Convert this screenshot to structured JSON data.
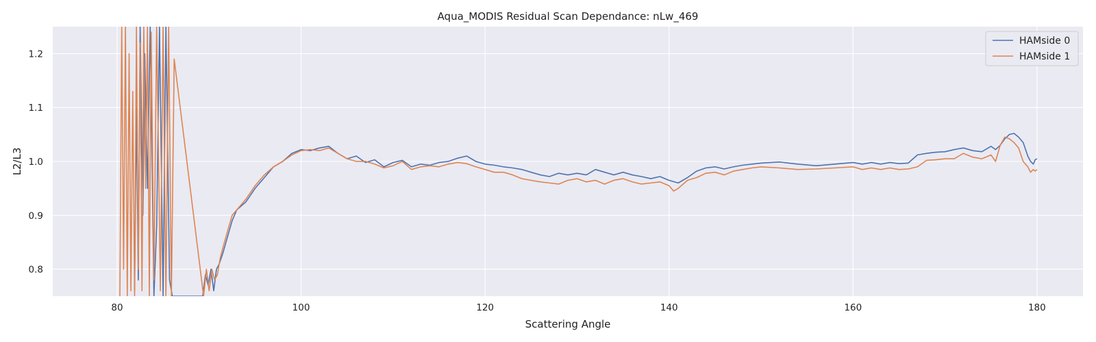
{
  "chart_data": {
    "type": "line",
    "title": "Aqua_MODIS Residual Scan Dependance: nLw_469",
    "xlabel": "Scattering Angle",
    "ylabel": "L2/L3",
    "xlim": [
      73,
      185
    ],
    "ylim": [
      0.75,
      1.25
    ],
    "xticks": [
      80,
      100,
      120,
      140,
      160,
      180
    ],
    "yticks": [
      0.8,
      0.9,
      1.0,
      1.1,
      1.2
    ],
    "xtick_labels": [
      "80",
      "100",
      "120",
      "140",
      "160",
      "180"
    ],
    "ytick_labels": [
      "0.8",
      "0.9",
      "1.0",
      "1.1",
      "1.2"
    ],
    "grid": true,
    "legend_position": "top-right",
    "series": [
      {
        "name": "HAMside 0",
        "color": "#4c72b0",
        "x": [
          81.9,
          82.1,
          82.3,
          82.5,
          82.8,
          83.0,
          83.3,
          83.6,
          84.0,
          84.3,
          84.6,
          85.0,
          85.3,
          85.7,
          86.0,
          89.3,
          89.6,
          89.9,
          90.2,
          90.5,
          90.8,
          91.1,
          91.5,
          92.0,
          92.5,
          93.0,
          94.0,
          95.0,
          96.0,
          97.0,
          98.0,
          99.0,
          100.0,
          101.0,
          102.0,
          103.0,
          104.0,
          105.0,
          106.0,
          107.0,
          108.0,
          109.0,
          110.0,
          111.0,
          112.0,
          113.0,
          114.0,
          115.0,
          116.0,
          117.0,
          118.0,
          119.0,
          120.0,
          121.0,
          122.0,
          123.0,
          124.0,
          125.0,
          126.0,
          127.0,
          128.0,
          129.0,
          130.0,
          131.0,
          132.0,
          133.0,
          134.0,
          135.0,
          136.0,
          137.0,
          138.0,
          139.0,
          140.0,
          141.0,
          142.0,
          143.0,
          144.0,
          145.0,
          146.0,
          147.0,
          148.0,
          149.0,
          150.0,
          152.0,
          154.0,
          156.0,
          158.0,
          160.0,
          161.0,
          162.0,
          163.0,
          164.0,
          165.0,
          166.0,
          167.0,
          168.0,
          169.0,
          170.0,
          171.0,
          172.0,
          173.0,
          174.0,
          175.0,
          175.5,
          176.0,
          176.5,
          177.0,
          177.5,
          178.0,
          178.5,
          179.0,
          179.3,
          179.6,
          179.8,
          180.0
        ],
        "y": [
          0.76,
          1.1,
          0.78,
          1.25,
          0.9,
          1.2,
          0.95,
          1.25,
          0.75,
          0.88,
          1.25,
          0.75,
          1.25,
          0.78,
          0.75,
          0.75,
          0.79,
          0.77,
          0.8,
          0.76,
          0.8,
          0.81,
          0.83,
          0.86,
          0.89,
          0.91,
          0.925,
          0.95,
          0.97,
          0.99,
          1.0,
          1.015,
          1.022,
          1.02,
          1.025,
          1.028,
          1.015,
          1.005,
          1.01,
          0.998,
          1.003,
          0.99,
          0.998,
          1.002,
          0.99,
          0.995,
          0.993,
          0.998,
          1.0,
          1.006,
          1.01,
          1.0,
          0.995,
          0.993,
          0.99,
          0.988,
          0.985,
          0.98,
          0.975,
          0.972,
          0.978,
          0.975,
          0.978,
          0.975,
          0.985,
          0.98,
          0.975,
          0.98,
          0.975,
          0.972,
          0.968,
          0.972,
          0.965,
          0.96,
          0.97,
          0.982,
          0.988,
          0.99,
          0.986,
          0.99,
          0.993,
          0.995,
          0.997,
          0.999,
          0.995,
          0.992,
          0.995,
          0.998,
          0.995,
          0.998,
          0.995,
          0.998,
          0.996,
          0.997,
          1.012,
          1.015,
          1.017,
          1.018,
          1.022,
          1.025,
          1.02,
          1.018,
          1.028,
          1.022,
          1.03,
          1.042,
          1.05,
          1.052,
          1.045,
          1.035,
          1.01,
          1.0,
          0.995,
          1.003,
          1.005
        ]
      },
      {
        "name": "HAMside 1",
        "color": "#dd8452",
        "x": [
          80.3,
          80.5,
          80.7,
          80.9,
          81.1,
          81.3,
          81.5,
          81.7,
          81.9,
          82.1,
          82.3,
          82.5,
          82.7,
          82.9,
          83.1,
          83.3,
          83.5,
          83.7,
          84.0,
          84.3,
          84.7,
          85.0,
          85.3,
          85.6,
          85.9,
          86.2,
          89.4,
          89.7,
          90.0,
          90.3,
          90.6,
          90.9,
          91.2,
          91.5,
          92.0,
          92.5,
          93.0,
          94.0,
          95.0,
          96.0,
          97.0,
          98.0,
          99.0,
          100.0,
          101.0,
          102.0,
          103.0,
          104.0,
          105.0,
          106.0,
          107.0,
          108.0,
          109.0,
          110.0,
          111.0,
          112.0,
          113.0,
          114.0,
          115.0,
          116.0,
          117.0,
          118.0,
          119.0,
          120.0,
          121.0,
          122.0,
          123.0,
          124.0,
          125.0,
          126.0,
          127.0,
          128.0,
          129.0,
          130.0,
          131.0,
          132.0,
          133.0,
          134.0,
          135.0,
          136.0,
          137.0,
          138.0,
          139.0,
          140.0,
          140.5,
          141.0,
          142.0,
          143.0,
          144.0,
          145.0,
          146.0,
          147.0,
          148.0,
          149.0,
          150.0,
          152.0,
          154.0,
          156.0,
          158.0,
          160.0,
          161.0,
          162.0,
          163.0,
          164.0,
          165.0,
          166.0,
          167.0,
          168.0,
          169.0,
          170.0,
          171.0,
          172.0,
          173.0,
          174.0,
          175.0,
          175.5,
          176.0,
          176.5,
          177.0,
          177.5,
          178.0,
          178.5,
          179.0,
          179.3,
          179.6,
          179.8,
          180.0
        ],
        "y": [
          0.75,
          1.25,
          0.8,
          1.25,
          0.75,
          1.2,
          0.76,
          1.13,
          0.75,
          1.25,
          0.8,
          1.22,
          0.76,
          1.25,
          0.95,
          1.25,
          0.75,
          1.24,
          0.78,
          1.25,
          0.76,
          1.25,
          0.75,
          1.25,
          0.75,
          1.19,
          0.75,
          0.8,
          0.76,
          0.8,
          0.78,
          0.79,
          0.82,
          0.84,
          0.87,
          0.9,
          0.91,
          0.93,
          0.955,
          0.975,
          0.99,
          1.0,
          1.012,
          1.02,
          1.022,
          1.02,
          1.025,
          1.015,
          1.005,
          1.0,
          1.0,
          0.995,
          0.988,
          0.992,
          1.0,
          0.985,
          0.99,
          0.992,
          0.99,
          0.995,
          0.998,
          0.996,
          0.99,
          0.985,
          0.98,
          0.98,
          0.975,
          0.968,
          0.965,
          0.962,
          0.96,
          0.958,
          0.965,
          0.968,
          0.962,
          0.965,
          0.958,
          0.965,
          0.968,
          0.962,
          0.958,
          0.96,
          0.962,
          0.955,
          0.945,
          0.95,
          0.965,
          0.97,
          0.978,
          0.98,
          0.975,
          0.982,
          0.985,
          0.988,
          0.99,
          0.988,
          0.985,
          0.986,
          0.988,
          0.99,
          0.985,
          0.988,
          0.985,
          0.988,
          0.985,
          0.986,
          0.99,
          1.002,
          1.003,
          1.005,
          1.005,
          1.015,
          1.008,
          1.005,
          1.012,
          1.0,
          1.03,
          1.045,
          1.042,
          1.035,
          1.025,
          1.0,
          0.99,
          0.98,
          0.985,
          0.982,
          0.985
        ]
      }
    ]
  }
}
